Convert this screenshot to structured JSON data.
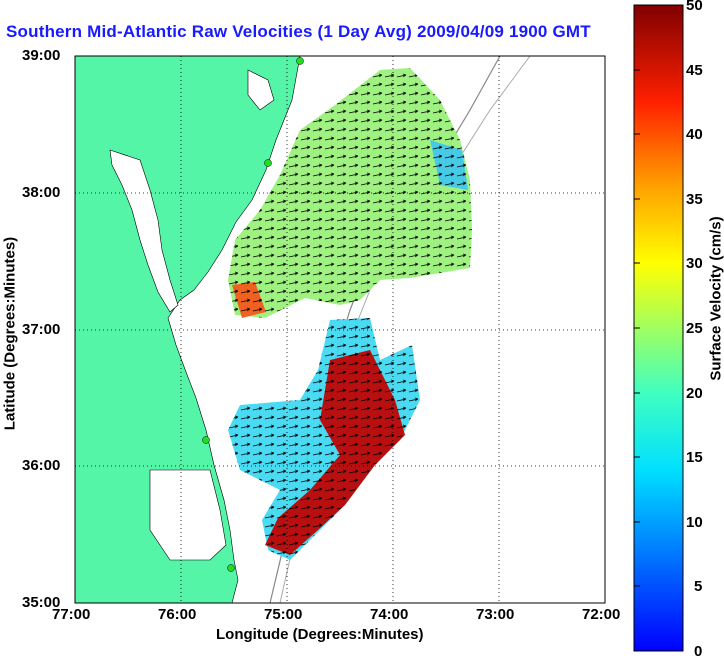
{
  "title": "Southern Mid-Atlantic Raw Velocities (1 Day Avg) 2009/04/09 1900 GMT",
  "map": {
    "xlabel": "Longitude (Degrees:Minutes)",
    "ylabel": "Latitude (Degrees:Minutes)",
    "x_ticks": [
      "77:00",
      "76:00",
      "75:00",
      "74:00",
      "73:00",
      "72:00"
    ],
    "y_ticks": [
      "39:00",
      "38:00",
      "37:00",
      "36:00",
      "35:00"
    ],
    "land_color": "#55f5a8",
    "water_color": "#ffffff"
  },
  "colorbar": {
    "label": "Surface Velocity (cm/s)",
    "range": [
      0,
      50
    ],
    "ticks": [
      "50",
      "45",
      "40",
      "35",
      "30",
      "25",
      "20",
      "15",
      "10",
      "5",
      "0"
    ],
    "colormap": "jet"
  }
}
